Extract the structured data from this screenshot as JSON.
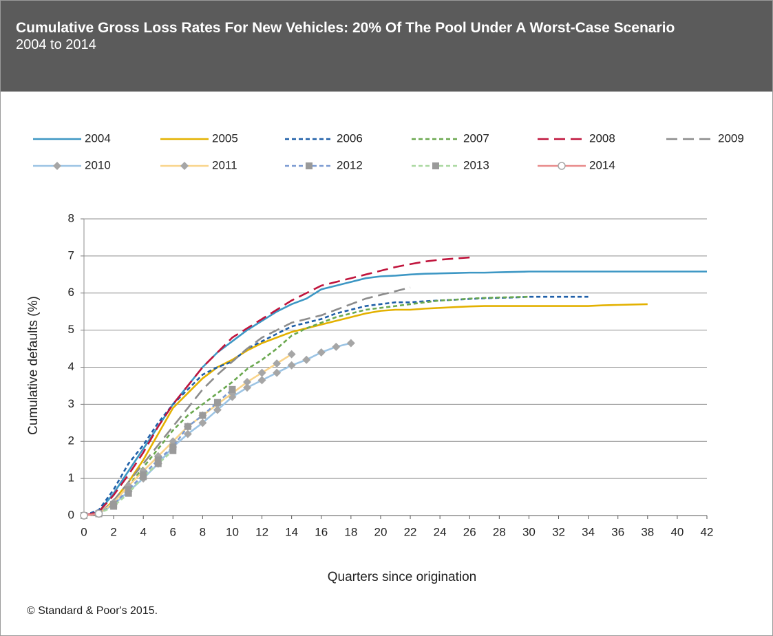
{
  "chart_data": {
    "type": "line",
    "title": "Cumulative Gross Loss Rates For New Vehicles: 20% Of The Pool Under A Worst-Case Scenario",
    "subtitle": "2004 to 2014",
    "x_label": "Quarters since origination",
    "y_label": "Cumulative defaults (%)",
    "source": "© Standard & Poor's 2015.",
    "x": [
      0,
      1,
      2,
      3,
      4,
      5,
      6,
      7,
      8,
      9,
      10,
      11,
      12,
      13,
      14,
      15,
      16,
      17,
      18,
      19,
      20,
      21,
      22,
      23,
      24,
      25,
      26,
      27,
      28,
      29,
      30,
      31,
      32,
      33,
      34,
      35,
      36,
      37,
      38,
      39,
      40,
      41,
      42
    ],
    "xlim": [
      0,
      42
    ],
    "xticks": [
      0,
      2,
      4,
      6,
      8,
      10,
      12,
      14,
      16,
      18,
      20,
      22,
      24,
      26,
      28,
      30,
      32,
      34,
      36,
      38,
      40,
      42
    ],
    "ylim": [
      0,
      8
    ],
    "yticks": [
      0,
      1,
      2,
      3,
      4,
      5,
      6,
      7,
      8
    ],
    "grid": true,
    "legend": "top",
    "series": [
      {
        "name": "2004",
        "color": "#3d97c4",
        "dash": "solid",
        "marker": null,
        "values": [
          0,
          0.1,
          0.6,
          1.2,
          1.8,
          2.4,
          3.0,
          3.5,
          4.0,
          4.4,
          4.7,
          5.0,
          5.25,
          5.5,
          5.7,
          5.85,
          6.1,
          6.2,
          6.3,
          6.4,
          6.45,
          6.47,
          6.5,
          6.52,
          6.53,
          6.54,
          6.55,
          6.55,
          6.56,
          6.57,
          6.58,
          6.58,
          6.58,
          6.58,
          6.58,
          6.58,
          6.58,
          6.58,
          6.58,
          6.58,
          6.58,
          6.58,
          6.58
        ]
      },
      {
        "name": "2005",
        "color": "#e3b100",
        "dash": "solid",
        "marker": null,
        "values": [
          0,
          0.05,
          0.4,
          0.9,
          1.5,
          2.2,
          2.9,
          3.3,
          3.7,
          4.0,
          4.2,
          4.45,
          4.65,
          4.8,
          4.95,
          5.05,
          5.15,
          5.25,
          5.35,
          5.45,
          5.52,
          5.55,
          5.55,
          5.58,
          5.6,
          5.62,
          5.64,
          5.65,
          5.65,
          5.65,
          5.65,
          5.65,
          5.65,
          5.65,
          5.65,
          5.67,
          5.68,
          5.69,
          5.7,
          null,
          null,
          null,
          null
        ]
      },
      {
        "name": "2006",
        "color": "#1f5fa8",
        "dash": "short",
        "marker": null,
        "values": [
          0,
          0.15,
          0.7,
          1.4,
          1.9,
          2.5,
          3.0,
          3.4,
          3.8,
          4.0,
          4.15,
          4.5,
          4.7,
          4.9,
          5.1,
          5.2,
          5.3,
          5.45,
          5.55,
          5.65,
          5.7,
          5.75,
          5.75,
          5.78,
          5.8,
          5.82,
          5.84,
          5.86,
          5.87,
          5.88,
          5.9,
          5.9,
          5.9,
          5.9,
          5.9,
          null,
          null,
          null,
          null,
          null,
          null,
          null,
          null
        ]
      },
      {
        "name": "2007",
        "color": "#6aa84f",
        "dash": "short",
        "marker": null,
        "values": [
          0,
          0.05,
          0.35,
          0.8,
          1.3,
          1.8,
          2.3,
          2.7,
          3.0,
          3.3,
          3.6,
          3.95,
          4.2,
          4.5,
          4.85,
          5.05,
          5.2,
          5.35,
          5.45,
          5.55,
          5.6,
          5.65,
          5.7,
          5.75,
          5.8,
          5.82,
          5.85,
          5.87,
          5.88,
          5.89,
          5.9,
          null,
          null,
          null,
          null,
          null,
          null,
          null,
          null,
          null,
          null,
          null,
          null
        ]
      },
      {
        "name": "2008",
        "color": "#c0143c",
        "dash": "long",
        "marker": null,
        "values": [
          0,
          0.1,
          0.55,
          1.1,
          1.7,
          2.4,
          3.0,
          3.5,
          4.0,
          4.4,
          4.8,
          5.05,
          5.3,
          5.55,
          5.8,
          6.0,
          6.2,
          6.3,
          6.4,
          6.5,
          6.6,
          6.7,
          6.78,
          6.85,
          6.9,
          6.93,
          6.96,
          null,
          null,
          null,
          null,
          null,
          null,
          null,
          null,
          null,
          null,
          null,
          null,
          null,
          null,
          null,
          null
        ]
      },
      {
        "name": "2009",
        "color": "#8c8c8c",
        "dash": "long",
        "marker": null,
        "values": [
          0,
          0.05,
          0.4,
          0.9,
          1.4,
          1.9,
          2.4,
          2.9,
          3.4,
          3.8,
          4.15,
          4.5,
          4.8,
          5.0,
          5.2,
          5.3,
          5.4,
          5.55,
          5.7,
          5.85,
          5.95,
          6.05,
          6.15,
          null,
          null,
          null,
          null,
          null,
          null,
          null,
          null,
          null,
          null,
          null,
          null,
          null,
          null,
          null,
          null,
          null,
          null,
          null,
          null
        ]
      },
      {
        "name": "2010",
        "color": "#9cc4e4",
        "dash": "solid",
        "marker": "diamond",
        "values": [
          0,
          0.05,
          0.3,
          0.65,
          1.0,
          1.4,
          1.85,
          2.2,
          2.5,
          2.85,
          3.2,
          3.45,
          3.65,
          3.85,
          4.05,
          4.2,
          4.4,
          4.55,
          4.65,
          null,
          null,
          null,
          null,
          null,
          null,
          null,
          null,
          null,
          null,
          null,
          null,
          null,
          null,
          null,
          null,
          null,
          null,
          null,
          null,
          null,
          null,
          null,
          null
        ]
      },
      {
        "name": "2011",
        "color": "#f9d48a",
        "dash": "solid",
        "marker": "diamond",
        "values": [
          0,
          0.05,
          0.35,
          0.8,
          1.2,
          1.6,
          2.0,
          2.4,
          2.7,
          3.0,
          3.3,
          3.6,
          3.85,
          4.1,
          4.35,
          null,
          null,
          null,
          null,
          null,
          null,
          null,
          null,
          null,
          null,
          null,
          null,
          null,
          null,
          null,
          null,
          null,
          null,
          null,
          null,
          null,
          null,
          null,
          null,
          null,
          null,
          null,
          null
        ]
      },
      {
        "name": "2012",
        "color": "#7a9ad1",
        "dash": "short",
        "marker": "square",
        "values": [
          0,
          0.05,
          0.3,
          0.7,
          1.1,
          1.5,
          1.85,
          2.4,
          2.7,
          3.05,
          3.4,
          null,
          null,
          null,
          null,
          null,
          null,
          null,
          null,
          null,
          null,
          null,
          null,
          null,
          null,
          null,
          null,
          null,
          null,
          null,
          null,
          null,
          null,
          null,
          null,
          null,
          null,
          null,
          null,
          null,
          null,
          null,
          null
        ]
      },
      {
        "name": "2013",
        "color": "#a9d8a0",
        "dash": "short",
        "marker": "square",
        "values": [
          0,
          0.05,
          0.25,
          0.6,
          1.05,
          1.4,
          1.75,
          null,
          null,
          null,
          null,
          null,
          null,
          null,
          null,
          null,
          null,
          null,
          null,
          null,
          null,
          null,
          null,
          null,
          null,
          null,
          null,
          null,
          null,
          null,
          null,
          null,
          null,
          null,
          null,
          null,
          null,
          null,
          null,
          null,
          null,
          null,
          null
        ]
      },
      {
        "name": "2014",
        "color": "#e88a8a",
        "dash": "solid",
        "marker": "circle",
        "values": [
          0,
          0.05,
          null,
          null,
          null,
          null,
          null,
          null,
          null,
          null,
          null,
          null,
          null,
          null,
          null,
          null,
          null,
          null,
          null,
          null,
          null,
          null,
          null,
          null,
          null,
          null,
          null,
          null,
          null,
          null,
          null,
          null,
          null,
          null,
          null,
          null,
          null,
          null,
          null,
          null,
          null,
          null,
          null
        ]
      }
    ]
  }
}
